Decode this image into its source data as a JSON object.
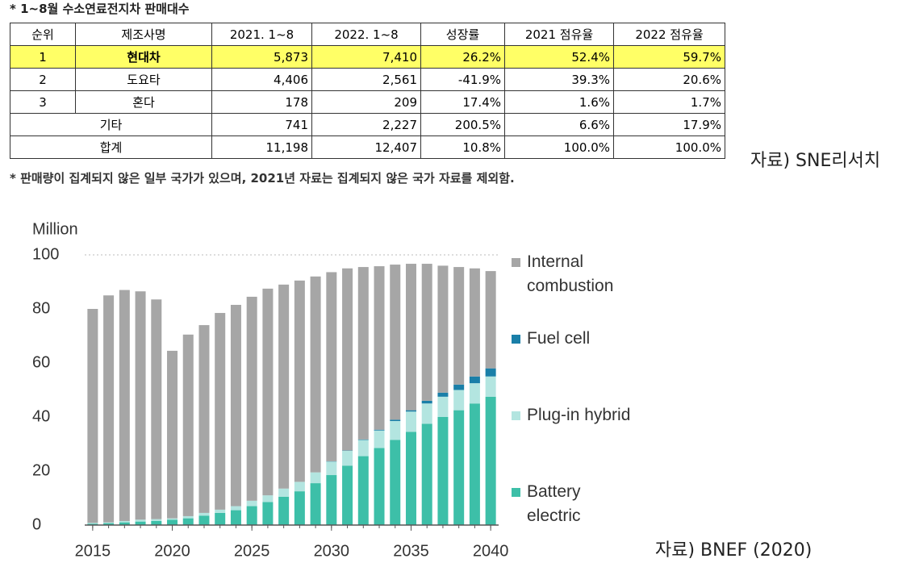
{
  "table": {
    "title": "* 1~8월 수소연료전지차 판매대수",
    "header": [
      "순위",
      "제조사명",
      "2021. 1~8",
      "2022. 1~8",
      "성장률",
      "2021 점유율",
      "2022 점유율"
    ],
    "rows": [
      [
        "1",
        "현대차",
        "5,873",
        "7,410",
        "26.2%",
        "52.4%",
        "59.7%"
      ],
      [
        "2",
        "도요타",
        "4,406",
        "2,561",
        "-41.9%",
        "39.3%",
        "20.6%"
      ],
      [
        "3",
        "혼다",
        "178",
        "209",
        "17.4%",
        "1.6%",
        "1.7%"
      ],
      [
        "기타",
        "741",
        "2,227",
        "200.5%",
        "6.6%",
        "17.9%"
      ],
      [
        "합계",
        "11,198",
        "12,407",
        "10.8%",
        "100.0%",
        "100.0%"
      ]
    ],
    "footnote": "* 판매량이 집계되지 않은 일부 국가가 있으며, 2021년 자료는 집계되지 않은 국가 자료를 제외함.",
    "source": "자료) SNE리서치"
  },
  "chart_data": {
    "type": "bar",
    "stacked": true,
    "y_label": "Million",
    "source": "자료) BNEF (2020)",
    "x": [
      2015,
      2016,
      2017,
      2018,
      2019,
      2020,
      2021,
      2022,
      2023,
      2024,
      2025,
      2026,
      2027,
      2028,
      2029,
      2030,
      2031,
      2032,
      2033,
      2034,
      2035,
      2036,
      2037,
      2038,
      2039,
      2040
    ],
    "xlim": [
      2014.5,
      2040.5
    ],
    "xticks": [
      2015,
      2020,
      2025,
      2030,
      2035,
      2040
    ],
    "ylim": [
      0,
      100
    ],
    "yticks": [
      0,
      20,
      40,
      60,
      80,
      100
    ],
    "series": [
      {
        "name": "Internal combustion",
        "color": "#a6a6a6",
        "values": [
          79.2,
          84,
          85.5,
          84.5,
          81.3,
          62,
          67.2,
          69.5,
          72.8,
          74.5,
          75.5,
          76.5,
          75.5,
          74.5,
          72.5,
          70,
          67.4,
          63.8,
          60.5,
          57.4,
          54.2,
          50.7,
          47,
          43.5,
          40,
          36
        ]
      },
      {
        "name": "Fuel cell",
        "color": "#1a7fa8",
        "values": [
          0,
          0,
          0,
          0,
          0,
          0,
          0,
          0,
          0,
          0,
          0,
          0,
          0,
          0,
          0,
          0.1,
          0.1,
          0.2,
          0.3,
          0.5,
          0.5,
          1,
          1.5,
          2,
          2.5,
          3
        ]
      },
      {
        "name": "Plug-in hybrid",
        "color": "#b3e5e0",
        "values": [
          0.3,
          0.3,
          0.5,
          0.7,
          0.7,
          0.5,
          0.8,
          1,
          1.2,
          1.5,
          2,
          2.5,
          3,
          3.5,
          4,
          5,
          5.5,
          6,
          6.5,
          7,
          7.5,
          7.5,
          7.5,
          7.5,
          7.5,
          7.5
        ]
      },
      {
        "name": "Battery electric",
        "color": "#3dbfa8",
        "values": [
          0.5,
          0.7,
          1,
          1.3,
          1.5,
          2,
          2.5,
          3.5,
          4.5,
          5.5,
          7,
          8.5,
          10.5,
          12.5,
          15.5,
          18.5,
          22,
          25.5,
          28.5,
          31.5,
          34.5,
          37.5,
          40,
          42.5,
          45,
          47.5
        ]
      }
    ]
  }
}
